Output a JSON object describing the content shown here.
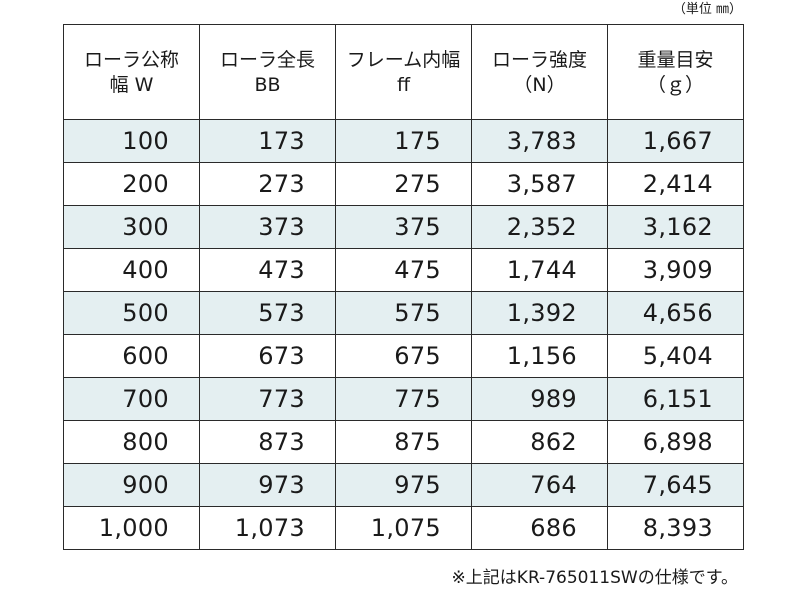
{
  "unit_note": "（単位 ㎜）",
  "table": {
    "headers": [
      {
        "line1": "ローラ公称",
        "line2": "幅 W"
      },
      {
        "line1": "ローラ全長",
        "line2": "BB"
      },
      {
        "line1": "フレーム内幅",
        "line2": "ff"
      },
      {
        "line1": "ローラ強度",
        "line2": "（N）"
      },
      {
        "line1": "重量目安",
        "line2": "（ｇ）"
      }
    ],
    "rows": [
      [
        "100",
        "173",
        "175",
        "3,783",
        "1,667"
      ],
      [
        "200",
        "273",
        "275",
        "3,587",
        "2,414"
      ],
      [
        "300",
        "373",
        "375",
        "2,352",
        "3,162"
      ],
      [
        "400",
        "473",
        "475",
        "1,744",
        "3,909"
      ],
      [
        "500",
        "573",
        "575",
        "1,392",
        "4,656"
      ],
      [
        "600",
        "673",
        "675",
        "1,156",
        "5,404"
      ],
      [
        "700",
        "773",
        "775",
        "989",
        "6,151"
      ],
      [
        "800",
        "873",
        "875",
        "862",
        "6,898"
      ],
      [
        "900",
        "973",
        "975",
        "764",
        "7,645"
      ],
      [
        "1,000",
        "1,073",
        "1,075",
        "686",
        "8,393"
      ]
    ]
  },
  "footnote": "※上記はKR-765011SWの仕様です。",
  "colors": {
    "row_shade": "#e4eff1",
    "border": "#2a2a2a",
    "text": "#1a1a1a"
  }
}
